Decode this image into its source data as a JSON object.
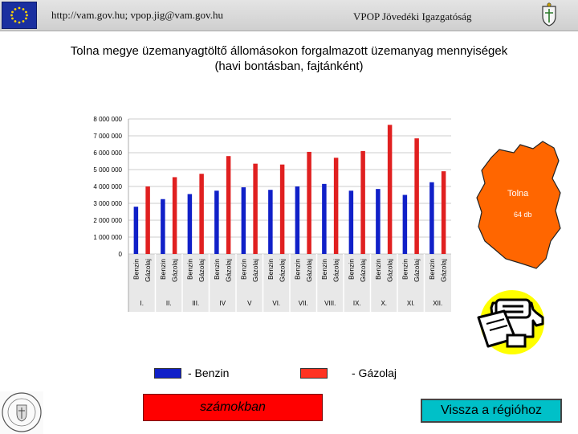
{
  "header": {
    "url_text": "http://vam.gov.hu; vpop.jig@vam.gov.hu",
    "org_text": "VPOP Jövedéki Igazgatóság"
  },
  "icons": {
    "flag": "eu-flag-icon",
    "crest": "coat-of-arms-icon",
    "map": "tolna-county-map",
    "phone": "telephone-fax-icon",
    "seal": "round-seal-icon"
  },
  "title": {
    "line1": "Tolna megye üzemanyagtöltő állomásokon forgalmazott üzemanyag mennyiségek",
    "line2": "(havi bontásban, fajtánként)"
  },
  "map": {
    "name": "Tolna",
    "count_label": "64 db",
    "color": "#ff6600"
  },
  "chart_data": {
    "type": "bar",
    "ylim": [
      0,
      8000000
    ],
    "yticks": [
      "0",
      "1 000 000",
      "2 000 000",
      "3 000 000",
      "4 000 000",
      "5 000 000",
      "6 000 000",
      "7 000 000",
      "8 000 000"
    ],
    "months": [
      "I.",
      "II.",
      "III.",
      "IV",
      "V",
      "VI.",
      "VII.",
      "VIII.",
      "IX.",
      "X.",
      "XI.",
      "XII."
    ],
    "bar_labels": [
      "Benzin",
      "Gázolaj"
    ],
    "series": [
      {
        "name": "Benzin",
        "color": "#1020c8",
        "values": [
          2800000,
          3250000,
          3550000,
          3750000,
          3950000,
          3800000,
          4000000,
          4150000,
          3750000,
          3850000,
          3500000,
          4250000
        ]
      },
      {
        "name": "Gázolaj",
        "color": "#e02020",
        "values": [
          4000000,
          4550000,
          4750000,
          5800000,
          5350000,
          5300000,
          6050000,
          5700000,
          6100000,
          7650000,
          6850000,
          4900000
        ]
      }
    ]
  },
  "legend": {
    "benzin": "- Benzin",
    "gazolaj": "- Gázolaj",
    "benzin_color": "#1020c8",
    "gazolaj_color": "#ff3322"
  },
  "buttons": {
    "szamokban": "számokban",
    "vissza": "Vissza a régióhoz"
  }
}
